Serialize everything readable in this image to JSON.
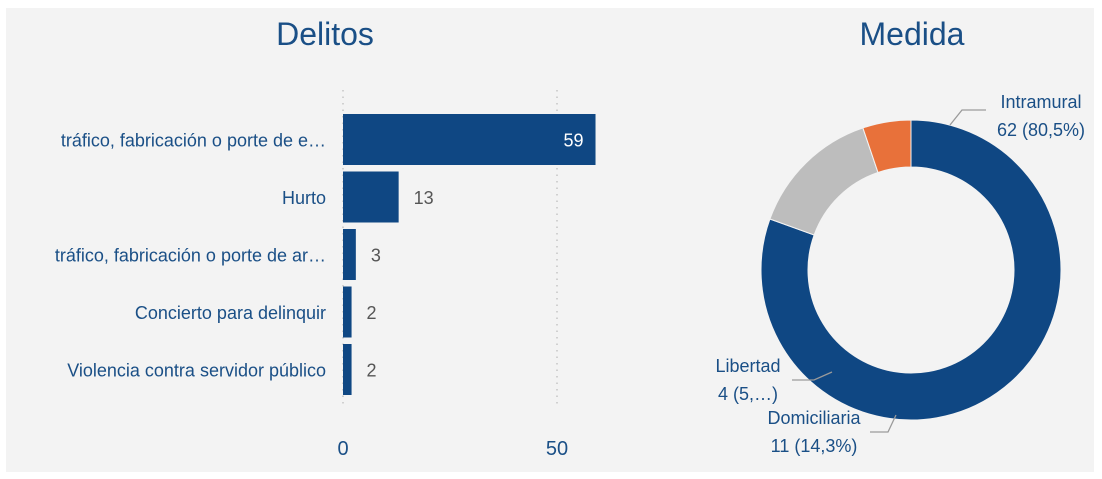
{
  "chart_data": [
    {
      "type": "bar",
      "orientation": "horizontal",
      "title": "Delitos",
      "categories": [
        "tráfico, fabricación o porte de e…",
        "Hurto",
        "tráfico, fabricación o porte de ar…",
        "Concierto para delinquir",
        "Violencia contra servidor público"
      ],
      "values": [
        59,
        13,
        3,
        2,
        2
      ],
      "value_labels": [
        "59",
        "13",
        "3",
        "2",
        "2"
      ],
      "xlim": [
        0,
        60
      ],
      "xticks": [
        0,
        50
      ],
      "xtick_labels": [
        "0",
        "50"
      ],
      "grid": "vertical dotted",
      "color": "#0f4783"
    },
    {
      "type": "pie",
      "variant": "donut",
      "title": "Medida",
      "slices": [
        {
          "name": "Intramural",
          "value": 62,
          "label_line1": "Intramural",
          "label_line2": "62 (80,5%)",
          "color": "#0f4783"
        },
        {
          "name": "Domiciliaria",
          "value": 11,
          "label_line1": "Domiciliaria",
          "label_line2": "11 (14,3%)",
          "color": "#bdbdbd"
        },
        {
          "name": "Libertad",
          "value": 4,
          "label_line1": "Libertad",
          "label_line2": "4 (5,…)",
          "color": "#e8713a"
        }
      ]
    }
  ]
}
